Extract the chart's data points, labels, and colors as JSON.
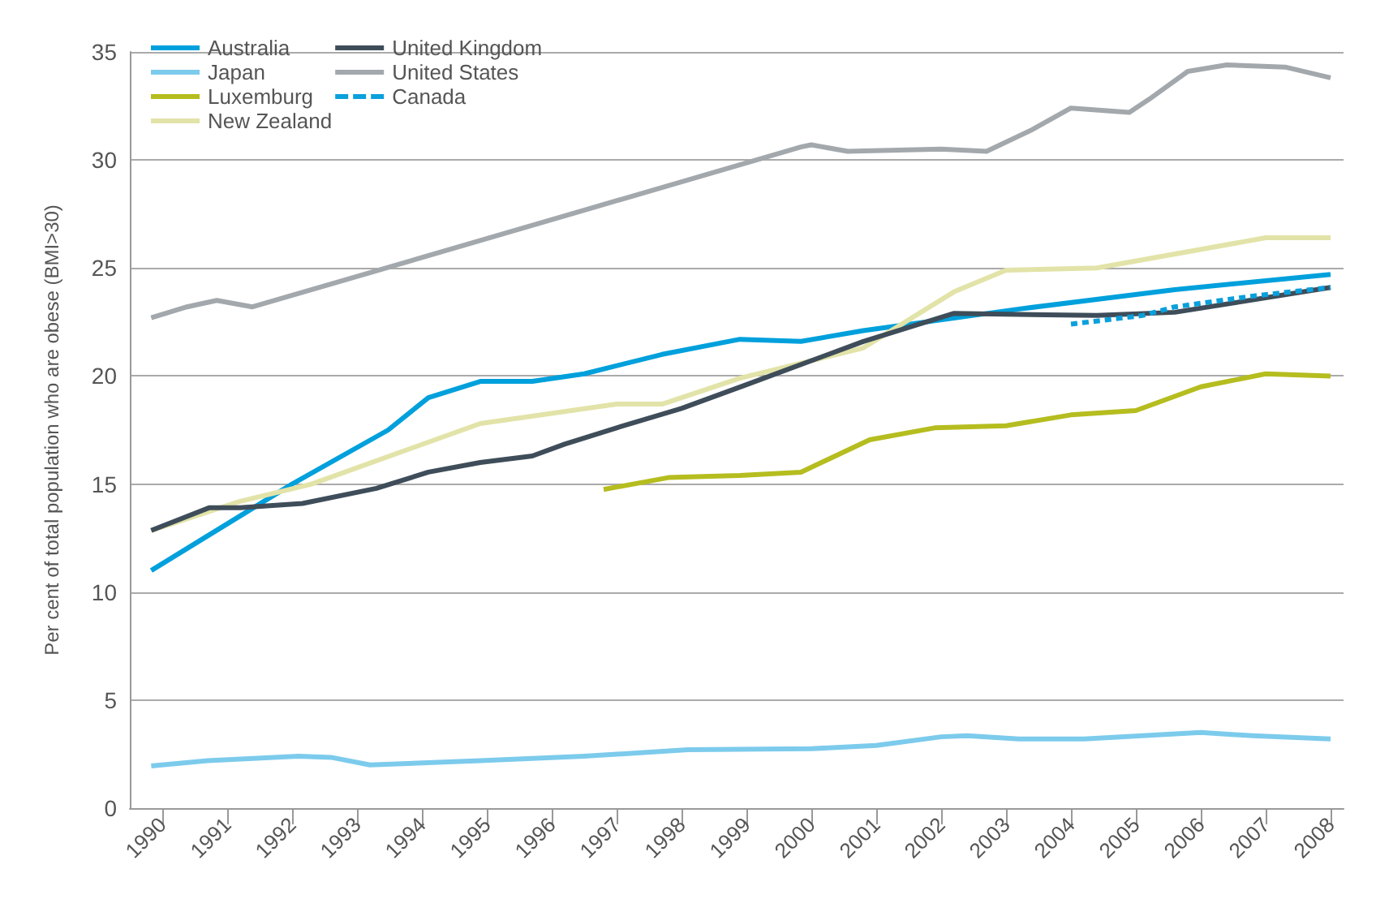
{
  "chart_data": {
    "type": "line",
    "ylabel": "Per cent of total population who are obese (BMI>30)",
    "xlim": [
      1989.5,
      2008.2
    ],
    "xticks": [
      1990,
      1991,
      1992,
      1993,
      1994,
      1995,
      1996,
      1997,
      1998,
      1999,
      2000,
      2001,
      2002,
      2003,
      2004,
      2005,
      2006,
      2007,
      2008
    ],
    "ylim": [
      0,
      35
    ],
    "yticks": [
      0,
      5,
      10,
      15,
      20,
      25,
      30,
      35
    ],
    "grid": "y",
    "legend": "top left",
    "marker": "none",
    "line_style": "solid",
    "series": [
      {
        "name": "Australia",
        "color": "#00a0dc",
        "x": [
          1989.83,
          1992.0,
          1993.48,
          1994.1,
          1994.9,
          1995.7,
          1996.5,
          1997.7,
          1998.9,
          1999.84,
          2000.8,
          2003.2,
          2005.6,
          2008.0
        ],
        "values": [
          11.0,
          15.0,
          17.5,
          19.0,
          19.75,
          19.75,
          20.1,
          21.0,
          21.7,
          21.6,
          22.1,
          23.1,
          24.0,
          24.7
        ]
      },
      {
        "name": "Japan",
        "color": "#7ccbec",
        "x": [
          1989.83,
          1990.7,
          1992.1,
          1992.6,
          1993.2,
          1994.9,
          1996.5,
          1998.1,
          2000.0,
          2001.0,
          2002.0,
          2002.4,
          2003.2,
          2004.2,
          2006.0,
          2006.8,
          2008.0
        ],
        "values": [
          1.95,
          2.2,
          2.4,
          2.35,
          2.0,
          2.2,
          2.4,
          2.7,
          2.75,
          2.9,
          3.3,
          3.35,
          3.2,
          3.2,
          3.5,
          3.35,
          3.2
        ]
      },
      {
        "name": "Luxemburg",
        "color": "#b5bd1f",
        "x": [
          1996.8,
          1997.8,
          1998.9,
          1999.84,
          2000.9,
          2001.9,
          2003.0,
          2004.0,
          2005.0,
          2006.0,
          2007.0,
          2008.0
        ],
        "values": [
          14.75,
          15.3,
          15.4,
          15.55,
          17.05,
          17.6,
          17.7,
          18.2,
          18.4,
          19.5,
          20.1,
          20.0
        ]
      },
      {
        "name": "New Zealand",
        "color": "#e2e3a8",
        "x": [
          1989.83,
          1991.2,
          1992.3,
          1994.9,
          1997.0,
          1997.7,
          1998.9,
          2000.8,
          2002.2,
          2003.0,
          2004.4,
          2007.0,
          2008.0
        ],
        "values": [
          12.85,
          14.2,
          15.0,
          17.8,
          18.7,
          18.7,
          19.9,
          21.3,
          23.9,
          24.9,
          25.0,
          26.4,
          26.4
        ]
      },
      {
        "name": "United Kingdom",
        "color": "#3e4d59",
        "x": [
          1989.83,
          1990.72,
          1991.2,
          1992.16,
          1993.3,
          1994.1,
          1994.9,
          1995.7,
          1996.2,
          1997.0,
          1998.0,
          1999.0,
          2000.8,
          2002.2,
          2004.4,
          2005.6,
          2008.0
        ],
        "values": [
          12.85,
          13.9,
          13.9,
          14.1,
          14.8,
          15.55,
          16.0,
          16.3,
          16.85,
          17.6,
          18.5,
          19.6,
          21.6,
          22.9,
          22.8,
          22.95,
          24.1
        ]
      },
      {
        "name": "United States",
        "color": "#a3a8ad",
        "x": [
          1989.83,
          1990.38,
          1990.84,
          1991.39,
          1999.84,
          2000.0,
          2000.56,
          2002.0,
          2002.7,
          2003.4,
          2004.0,
          2004.9,
          2005.2,
          2005.8,
          2006.4,
          2007.3,
          2008.0
        ],
        "values": [
          22.7,
          23.2,
          23.5,
          23.2,
          30.6,
          30.7,
          30.4,
          30.5,
          30.4,
          31.4,
          32.4,
          32.2,
          32.8,
          34.1,
          34.4,
          34.3,
          33.8
        ]
      },
      {
        "name": "Canada",
        "color": "#0aa0dc",
        "line_style": "dashed",
        "x": [
          2004.0,
          2005.1,
          2005.6,
          2006.8,
          2008.0
        ],
        "values": [
          22.4,
          22.8,
          23.2,
          23.7,
          24.1
        ]
      }
    ]
  }
}
